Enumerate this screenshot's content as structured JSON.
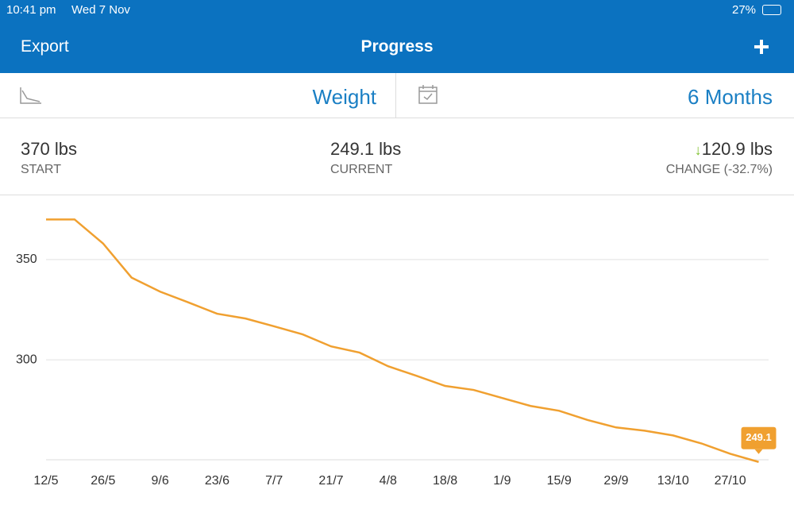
{
  "status_bar": {
    "time": "10:41 pm",
    "date": "Wed 7 Nov",
    "battery": "27%"
  },
  "nav": {
    "left": "Export",
    "title": "Progress"
  },
  "filters": {
    "measure": "Weight",
    "period": "6 Months"
  },
  "stats": [
    {
      "value": "370 lbs",
      "label": "START"
    },
    {
      "value": "249.1 lbs",
      "label": "CURRENT"
    },
    {
      "value": "120.9 lbs",
      "label": "CHANGE (-32.7%)"
    }
  ],
  "chart_data": {
    "type": "line",
    "color": "#f0a030",
    "categories": [
      "12/5",
      null,
      "26/5",
      null,
      "9/6",
      null,
      "23/6",
      null,
      "7/7",
      null,
      "21/7",
      null,
      "4/8",
      null,
      "18/8",
      null,
      "1/9",
      null,
      "15/9",
      null,
      "29/9",
      null,
      "13/10",
      null,
      "27/10",
      null
    ],
    "values": [
      370,
      370,
      358,
      341,
      334,
      328.6,
      323,
      320.6,
      316.7,
      312.7,
      306.7,
      303.6,
      296.8,
      292,
      287,
      285,
      281,
      277,
      274.6,
      270,
      266.3,
      264.7,
      262.3,
      258.3,
      253.2,
      249.1
    ],
    "ylim": [
      249,
      382
    ],
    "yticks": [
      300,
      350
    ],
    "grid": true
  }
}
